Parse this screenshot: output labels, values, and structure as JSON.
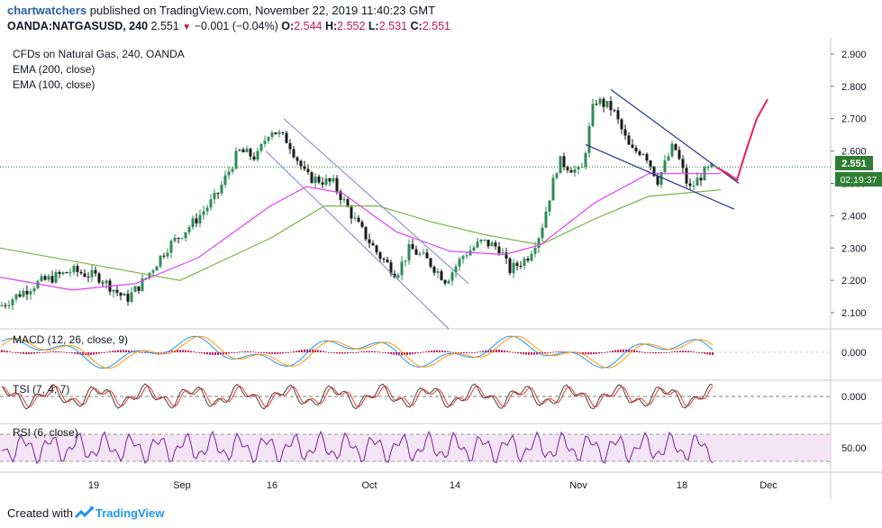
{
  "header": {
    "author": "chartwatchers",
    "published_text": "published on TradingView.com, November 22, 2019 11:40:23 GMT",
    "symbol": "OANDA:NATGASUSD, 240",
    "last": "2.551",
    "change": "−0.001 (−0.04%)",
    "o_label": "O:",
    "o": "2.544",
    "h_label": "H:",
    "h": "2.552",
    "l_label": "L:",
    "l": "2.531",
    "c_label": "C:",
    "c": "2.551"
  },
  "legend": {
    "instrument": "CFDs on Natural Gas, 240, OANDA",
    "ema200": "EMA (200, close)",
    "ema100": "EMA (100, close)",
    "macd": "MACD (12, 26, close, 9)",
    "tsi": "TSI (7, 4, 7)",
    "rsi": "RSI (6, close)"
  },
  "badges": {
    "price": "2.551",
    "countdown": "02:19:37"
  },
  "footer": {
    "created_with": "Created with",
    "brand": "TradingView"
  },
  "colors": {
    "up": "#26a69a",
    "down": "#ef5350",
    "bear_candle": "#1a1a1a",
    "bull_candle": "#2e8b57",
    "ema200": "#7cb342",
    "ema100": "#e040fb",
    "channel": "#5c6bc0",
    "projection": "#e91e63",
    "price_badge": "#2e7d32",
    "macd_line": "#2196f3",
    "signal_line": "#ff9800",
    "hist": "#c2185b",
    "rsi": "#7b1fa2",
    "rsi_band": "#e1bee7"
  },
  "chart_data": {
    "type": "candlestick",
    "symbol": "NATGASUSD",
    "timeframe": "240",
    "price_axis": {
      "min": 2.05,
      "max": 2.95,
      "ticks": [
        "2.100",
        "2.200",
        "2.300",
        "2.400",
        "2.500",
        "2.600",
        "2.700",
        "2.800",
        "2.900"
      ]
    },
    "x_ticks": [
      "19",
      "Sep",
      "16",
      "Oct",
      "14",
      "Nov",
      "18",
      "Dec"
    ],
    "price_path": [
      [
        0,
        2.12
      ],
      [
        40,
        2.19
      ],
      [
        80,
        2.23
      ],
      [
        110,
        2.21
      ],
      [
        140,
        2.14
      ],
      [
        160,
        2.2
      ],
      [
        185,
        2.3
      ],
      [
        215,
        2.38
      ],
      [
        240,
        2.46
      ],
      [
        265,
        2.6
      ],
      [
        285,
        2.58
      ],
      [
        300,
        2.67
      ],
      [
        320,
        2.63
      ],
      [
        340,
        2.52
      ],
      [
        370,
        2.5
      ],
      [
        395,
        2.38
      ],
      [
        420,
        2.28
      ],
      [
        440,
        2.22
      ],
      [
        455,
        2.3
      ],
      [
        475,
        2.26
      ],
      [
        495,
        2.2
      ],
      [
        515,
        2.28
      ],
      [
        535,
        2.32
      ],
      [
        555,
        2.3
      ],
      [
        565,
        2.23
      ],
      [
        585,
        2.27
      ],
      [
        600,
        2.35
      ],
      [
        620,
        2.57
      ],
      [
        645,
        2.53
      ],
      [
        660,
        2.76
      ],
      [
        680,
        2.73
      ],
      [
        700,
        2.6
      ],
      [
        715,
        2.6
      ],
      [
        730,
        2.51
      ],
      [
        748,
        2.62
      ],
      [
        765,
        2.48
      ],
      [
        780,
        2.53
      ],
      [
        792,
        2.551
      ]
    ],
    "ema200_path": [
      [
        0,
        2.3
      ],
      [
        100,
        2.25
      ],
      [
        200,
        2.2
      ],
      [
        300,
        2.33
      ],
      [
        360,
        2.43
      ],
      [
        420,
        2.43
      ],
      [
        480,
        2.38
      ],
      [
        540,
        2.34
      ],
      [
        600,
        2.31
      ],
      [
        660,
        2.39
      ],
      [
        720,
        2.46
      ],
      [
        800,
        2.48
      ]
    ],
    "ema100_path": [
      [
        0,
        2.21
      ],
      [
        80,
        2.17
      ],
      [
        150,
        2.19
      ],
      [
        220,
        2.27
      ],
      [
        300,
        2.43
      ],
      [
        340,
        2.49
      ],
      [
        380,
        2.47
      ],
      [
        440,
        2.35
      ],
      [
        500,
        2.29
      ],
      [
        560,
        2.28
      ],
      [
        600,
        2.31
      ],
      [
        660,
        2.44
      ],
      [
        720,
        2.53
      ],
      [
        780,
        2.53
      ],
      [
        800,
        2.53
      ]
    ],
    "channel1": {
      "upper": [
        [
          315,
          2.7
        ],
        [
          520,
          2.19
        ]
      ],
      "lower": [
        [
          295,
          2.6
        ],
        [
          498,
          2.05
        ]
      ]
    },
    "channel2": {
      "upper": [
        [
          678,
          2.79
        ],
        [
          820,
          2.5
        ]
      ],
      "lower": [
        [
          650,
          2.62
        ],
        [
          815,
          2.42
        ]
      ]
    },
    "projection": [
      [
        795,
        2.55
      ],
      [
        808,
        2.53
      ],
      [
        818,
        2.51
      ],
      [
        828,
        2.6
      ],
      [
        840,
        2.7
      ],
      [
        852,
        2.76
      ]
    ],
    "indicators": {
      "macd": {
        "ticks": [
          "0.000"
        ]
      },
      "tsi": {
        "ticks": [
          "0.000"
        ]
      },
      "rsi": {
        "ticks": [
          "50.00"
        ],
        "band": [
          30,
          70
        ]
      }
    }
  }
}
